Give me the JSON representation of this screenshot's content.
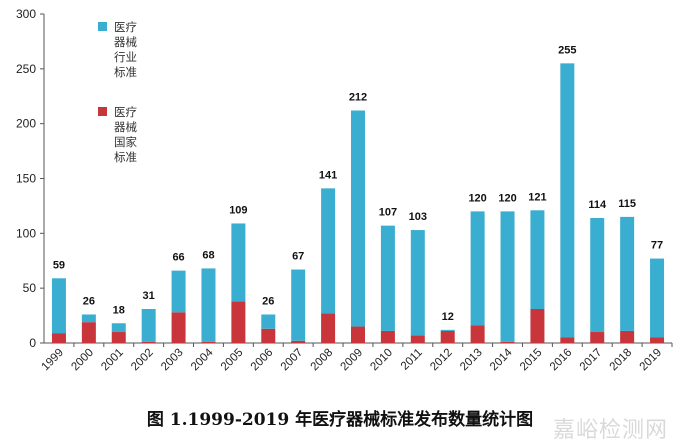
{
  "chart_data": {
    "type": "bar",
    "stacked": true,
    "title": "图 1.1999-2019 年医疗器械标准发布数量统计图",
    "xlabel": "",
    "ylabel": "",
    "ylim": [
      0,
      300
    ],
    "yticks": [
      0,
      50,
      100,
      150,
      200,
      250,
      300
    ],
    "grid": false,
    "legend_position": "top-left",
    "categories": [
      "1999",
      "2000",
      "2001",
      "2002",
      "2003",
      "2004",
      "2005",
      "2006",
      "2007",
      "2008",
      "2009",
      "2010",
      "2011",
      "2012",
      "2013",
      "2014",
      "2015",
      "2016",
      "2017",
      "2018",
      "2019"
    ],
    "totals": [
      59,
      26,
      18,
      31,
      66,
      68,
      109,
      26,
      67,
      141,
      212,
      107,
      103,
      12,
      120,
      120,
      121,
      255,
      114,
      115,
      77
    ],
    "series": [
      {
        "name": "医疗器械国家标准",
        "color": "#c8353a",
        "values": [
          9,
          19,
          10,
          1,
          28,
          1,
          38,
          13,
          2,
          27,
          15,
          11,
          7,
          11,
          16,
          1,
          31,
          5,
          10,
          11,
          5
        ]
      },
      {
        "name": "医疗器械行业标准",
        "color": "#3aaed0",
        "values": [
          50,
          7,
          8,
          30,
          38,
          67,
          71,
          13,
          65,
          114,
          197,
          96,
          96,
          1,
          104,
          119,
          90,
          250,
          104,
          104,
          72
        ]
      }
    ]
  },
  "legend": {
    "industry": [
      "医疗",
      "器械",
      "行业",
      "标准"
    ],
    "national": [
      "医疗",
      "器械",
      "国家",
      "标准"
    ]
  },
  "caption": "图 1.1999-2019 年医疗器械标准发布数量统计图",
  "watermark": "嘉峪检测网"
}
